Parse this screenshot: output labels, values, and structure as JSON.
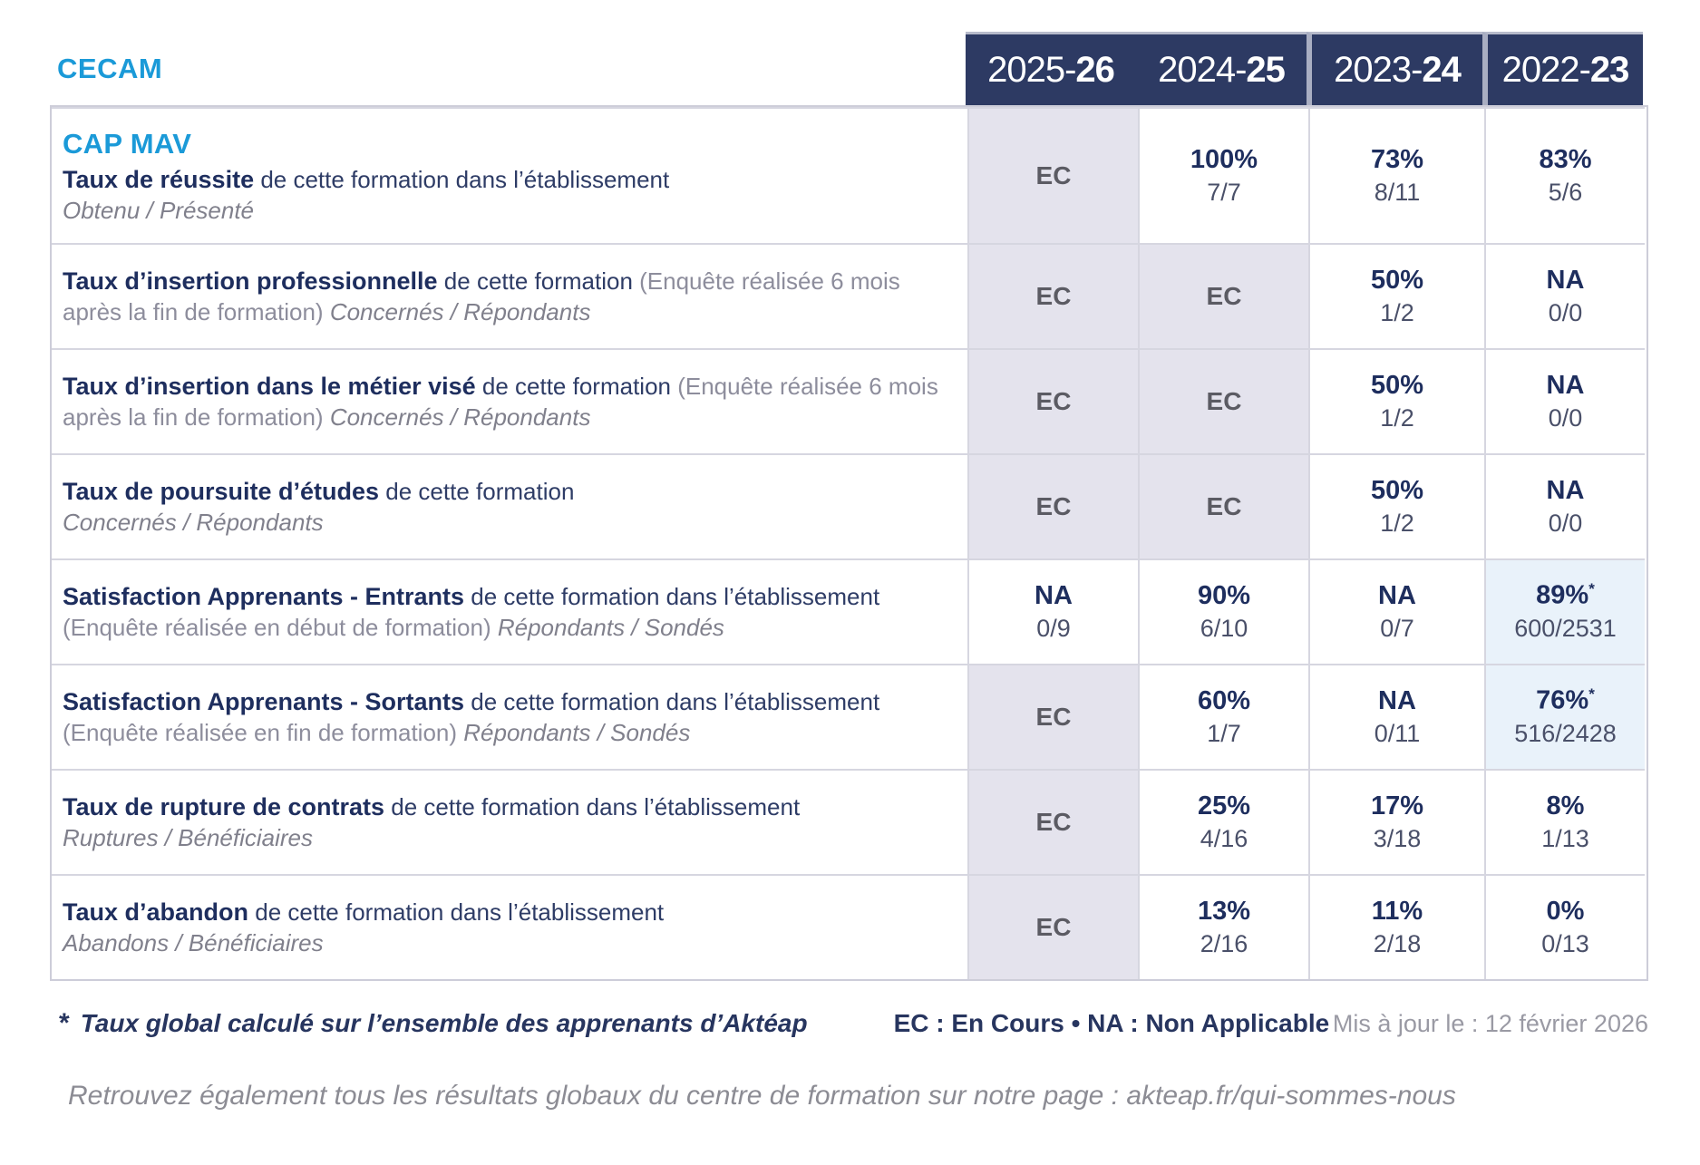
{
  "org": "CECAM",
  "program": "CAP MAV",
  "header": {
    "years": [
      {
        "prefix": "2025-",
        "suffix": "26"
      },
      {
        "prefix": "2024-",
        "suffix": "25"
      },
      {
        "prefix": "2023-",
        "suffix": "24"
      },
      {
        "prefix": "2022-",
        "suffix": "23"
      }
    ]
  },
  "rows": [
    {
      "program": "CAP MAV",
      "title": "Taux de réussite",
      "rest": " de cette formation dans l’établissement",
      "paren": "",
      "sub": "Obtenu / Présenté",
      "sub_block": true,
      "cells": [
        {
          "main": "EC",
          "ec": true
        },
        {
          "main": "100%",
          "frac": "7/7"
        },
        {
          "main": "73%",
          "frac": "8/11"
        },
        {
          "main": "83%",
          "frac": "5/6"
        }
      ]
    },
    {
      "title": "Taux d’insertion professionnelle",
      "rest": " de cette formation ",
      "paren": "(Enquête réalisée 6 mois après la fin de formation) ",
      "sub": "Concernés / Répondants",
      "sub_block": false,
      "cells": [
        {
          "main": "EC",
          "ec": true
        },
        {
          "main": "EC",
          "ec": true
        },
        {
          "main": "50%",
          "frac": "1/2"
        },
        {
          "main": "NA",
          "frac": "0/0"
        }
      ]
    },
    {
      "title": "Taux d’insertion dans le métier visé",
      "rest": " de cette formation ",
      "paren": "(Enquête réalisée 6 mois après la fin de formation) ",
      "sub": "Concernés / Répondants",
      "sub_block": false,
      "cells": [
        {
          "main": "EC",
          "ec": true
        },
        {
          "main": "EC",
          "ec": true
        },
        {
          "main": "50%",
          "frac": "1/2"
        },
        {
          "main": "NA",
          "frac": "0/0"
        }
      ]
    },
    {
      "title": "Taux de poursuite d’études",
      "rest": " de cette formation",
      "paren": "",
      "sub": "Concernés / Répondants",
      "sub_block": true,
      "cells": [
        {
          "main": "EC",
          "ec": true
        },
        {
          "main": "EC",
          "ec": true
        },
        {
          "main": "50%",
          "frac": "1/2"
        },
        {
          "main": "NA",
          "frac": "0/0"
        }
      ]
    },
    {
      "title": "Satisfaction Apprenants - Entrants",
      "rest": " de cette formation dans l’établissement ",
      "paren": "(Enquête réalisée en début de formation) ",
      "sub": "Répondants / Sondés",
      "sub_block": false,
      "cells": [
        {
          "main": "NA",
          "frac": "0/9"
        },
        {
          "main": "90%",
          "frac": "6/10"
        },
        {
          "main": "NA",
          "frac": "0/7"
        },
        {
          "main": "89%",
          "frac": "600/2531",
          "star": true,
          "hl": true
        }
      ]
    },
    {
      "title": "Satisfaction Apprenants - Sortants",
      "rest": " de cette formation dans l’établissement ",
      "paren": "(Enquête réalisée en fin de formation) ",
      "sub": "Répondants / Sondés",
      "sub_block": false,
      "cells": [
        {
          "main": "EC",
          "ec": true
        },
        {
          "main": "60%",
          "frac": "1/7"
        },
        {
          "main": "NA",
          "frac": "0/11"
        },
        {
          "main": "76%",
          "frac": "516/2428",
          "star": true,
          "hl": true
        }
      ]
    },
    {
      "title": "Taux de rupture de contrats",
      "rest": " de cette formation dans l’établissement",
      "paren": "",
      "sub": "Ruptures / Bénéficiaires",
      "sub_block": true,
      "cells": [
        {
          "main": "EC",
          "ec": true
        },
        {
          "main": "25%",
          "frac": "4/16"
        },
        {
          "main": "17%",
          "frac": "3/18"
        },
        {
          "main": "8%",
          "frac": "1/13"
        }
      ]
    },
    {
      "title": "Taux d’abandon",
      "rest": " de cette formation dans l’établissement",
      "paren": "",
      "sub": "Abandons / Bénéficiaires",
      "sub_block": true,
      "cells": [
        {
          "main": "EC",
          "ec": true
        },
        {
          "main": "13%",
          "frac": "2/16"
        },
        {
          "main": "11%",
          "frac": "2/18"
        },
        {
          "main": "0%",
          "frac": "0/13"
        }
      ]
    }
  ],
  "footnote": {
    "star": "*",
    "text": "Taux global calculé sur l’ensemble des apprenants d’Aktéap",
    "legend": "EC : En Cours  •  NA : Non Applicable",
    "updated": "Mis à jour le : 12 février 2026"
  },
  "bottom_note": "Retrouvez également tous les résultats globaux du centre de formation sur notre page : akteap.fr/qui-sommes-nous",
  "colors": {
    "accent_blue": "#1b9ad8",
    "header_navy": "#2d3a63",
    "text_navy": "#1e2e5e",
    "ec_cell_bg": "#e4e3ed",
    "highlight_cell_bg": "#e9f2fa",
    "border_gray": "#d6d6e0",
    "muted_gray": "#8d8d9c"
  }
}
